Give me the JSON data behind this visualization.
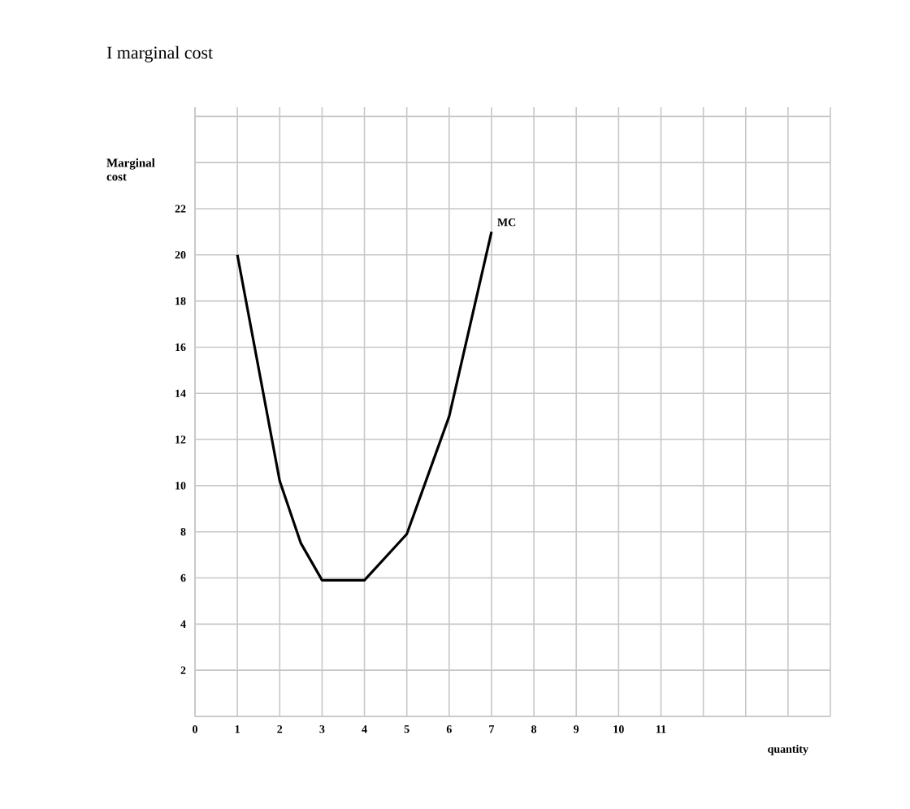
{
  "chart_data": {
    "type": "line",
    "title": "I marginal cost",
    "xlabel": "quantity",
    "ylabel": "Marginal cost",
    "x": [
      1,
      2,
      2.5,
      3,
      4,
      5,
      6,
      7
    ],
    "series": [
      {
        "name": "MC",
        "color": "#000000",
        "values": [
          20,
          10.2,
          7.5,
          5.9,
          5.9,
          7.9,
          13,
          21
        ]
      }
    ],
    "xlim": [
      0,
      15
    ],
    "xticks": [
      0,
      1,
      2,
      3,
      4,
      5,
      6,
      7,
      8,
      9,
      10,
      11,
      {
        "value": 12,
        "label": null
      },
      {
        "value": 13,
        "label": null
      },
      {
        "value": 14,
        "label": null
      },
      {
        "value": 15,
        "label": null
      }
    ],
    "ylim": [
      0,
      26.4
    ],
    "yticks": [
      {
        "value": 0,
        "label": null
      },
      2,
      4,
      6,
      8,
      10,
      12,
      14,
      16,
      18,
      20,
      22,
      {
        "value": 24,
        "label": null
      },
      {
        "value": 26,
        "label": null
      }
    ],
    "grid": true,
    "marker": "none",
    "line_style": "solid"
  }
}
